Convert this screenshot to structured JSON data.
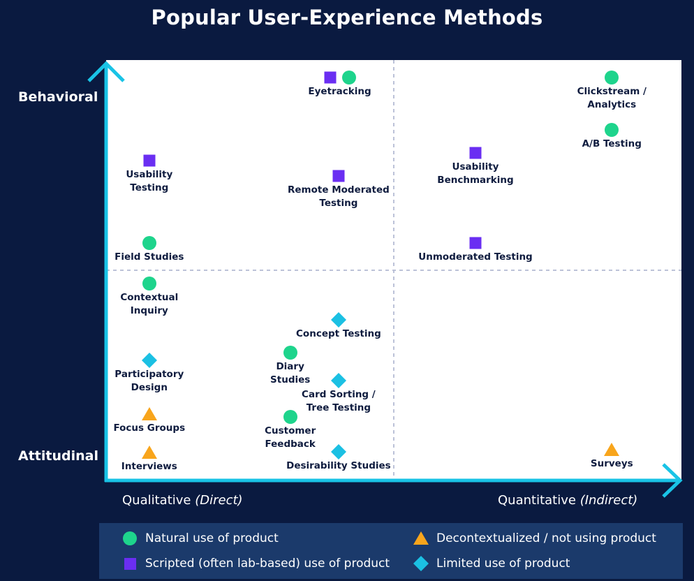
{
  "chart_data": {
    "type": "scatter",
    "title": "Popular User-Experience Methods",
    "y_axis": {
      "top": "Behavioral",
      "bottom": "Attitudinal"
    },
    "x_axis": {
      "left": "Qualitative",
      "left_qualifier": "(Direct)",
      "right": "Quantitative",
      "right_qualifier": "(Indirect)"
    },
    "ranges": {
      "x": [
        0,
        100
      ],
      "y": [
        0,
        100
      ]
    },
    "points": [
      {
        "name": "Eyetracking",
        "lines": [
          "Eyetracking"
        ],
        "markers": [
          "scripted",
          "natural"
        ],
        "x": 40.6,
        "y": 95.9
      },
      {
        "name": "Clickstream / Analytics",
        "lines": [
          "Clickstream /",
          "Analytics"
        ],
        "markers": [
          "natural"
        ],
        "x": 87.9,
        "y": 95.8
      },
      {
        "name": "A/B Testing",
        "lines": [
          "A/B Testing"
        ],
        "markers": [
          "natural"
        ],
        "x": 87.9,
        "y": 83.4
      },
      {
        "name": "Usability Testing",
        "lines": [
          "Usability",
          "Testing"
        ],
        "markers": [
          "scripted"
        ],
        "x": 7.5,
        "y": 76.0
      },
      {
        "name": "Remote Moderated Testing",
        "lines": [
          "Remote Moderated",
          "Testing"
        ],
        "markers": [
          "scripted"
        ],
        "x": 40.4,
        "y": 72.4
      },
      {
        "name": "Usability Benchmarking",
        "lines": [
          "Usability",
          "Benchmarking"
        ],
        "markers": [
          "scripted"
        ],
        "x": 64.2,
        "y": 77.9
      },
      {
        "name": "Field Studies",
        "lines": [
          "Field Studies"
        ],
        "markers": [
          "natural"
        ],
        "x": 7.5,
        "y": 56.5
      },
      {
        "name": "Unmoderated Testing",
        "lines": [
          "Unmoderated Testing"
        ],
        "markers": [
          "scripted"
        ],
        "x": 64.2,
        "y": 56.5
      },
      {
        "name": "Contextual Inquiry",
        "lines": [
          "Contextual",
          "Inquiry"
        ],
        "markers": [
          "natural"
        ],
        "x": 7.5,
        "y": 46.8
      },
      {
        "name": "Concept Testing",
        "lines": [
          "Concept Testing"
        ],
        "markers": [
          "limited"
        ],
        "x": 40.4,
        "y": 38.2
      },
      {
        "name": "Diary Studies",
        "lines": [
          "Diary",
          "Studies"
        ],
        "markers": [
          "natural"
        ],
        "x": 32.0,
        "y": 30.4
      },
      {
        "name": "Participatory Design",
        "lines": [
          "Participatory",
          "Design"
        ],
        "markers": [
          "limited"
        ],
        "x": 7.5,
        "y": 28.5
      },
      {
        "name": "Card Sorting / Tree Testing",
        "lines": [
          "Card Sorting /",
          "Tree Testing"
        ],
        "markers": [
          "limited"
        ],
        "x": 40.4,
        "y": 23.8
      },
      {
        "name": "Focus Groups",
        "lines": [
          "Focus Groups"
        ],
        "markers": [
          "decontextualized"
        ],
        "x": 7.5,
        "y": 15.8
      },
      {
        "name": "Customer Feedback",
        "lines": [
          "Customer",
          "Feedback"
        ],
        "markers": [
          "natural"
        ],
        "x": 32.0,
        "y": 15.1
      },
      {
        "name": "Interviews",
        "lines": [
          "Interviews"
        ],
        "markers": [
          "decontextualized"
        ],
        "x": 7.5,
        "y": 6.6
      },
      {
        "name": "Desirability Studies",
        "lines": [
          "Desirability Studies"
        ],
        "markers": [
          "limited"
        ],
        "x": 40.4,
        "y": 6.8
      },
      {
        "name": "Surveys",
        "lines": [
          "Surveys"
        ],
        "markers": [
          "decontextualized"
        ],
        "x": 87.9,
        "y": 7.3
      }
    ],
    "legend": [
      {
        "key": "natural",
        "label": "Natural use of product",
        "shape": "circle",
        "color": "#1ed48c"
      },
      {
        "key": "scripted",
        "label": "Scripted (often lab-based) use of product",
        "shape": "square",
        "color": "#6a2ef2"
      },
      {
        "key": "decontextualized",
        "label": "Decontextualized / not using product",
        "shape": "triangle",
        "color": "#f8a51c"
      },
      {
        "key": "limited",
        "label": "Limited use of product",
        "shape": "diamond",
        "color": "#1bc0e3"
      }
    ],
    "colors": {
      "background": "#0a1a40",
      "axis": "#19c3e6",
      "legend_bg": "#1b3a6b",
      "grid": "#bcc2d8",
      "label": "#0f1c3f"
    }
  }
}
